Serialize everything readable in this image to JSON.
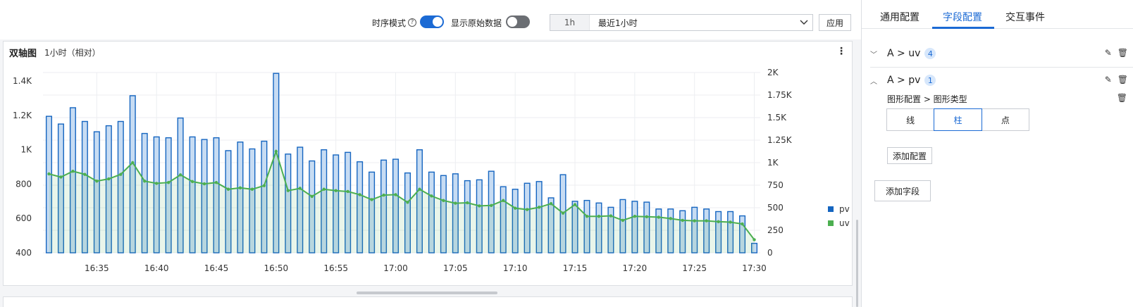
{
  "toolbar": {
    "timeseries_label": "时序模式",
    "timeseries_on": true,
    "raw_label": "显示原始数据",
    "raw_on": false,
    "time_short": "1h",
    "time_range": "最近1小时",
    "apply_label": "应用"
  },
  "panel": {
    "title": "双轴图",
    "subtitle": "1小时（相对）"
  },
  "chart_data": {
    "type": "bar",
    "x": [
      "16:31",
      "16:32",
      "16:33",
      "16:34",
      "16:35",
      "16:36",
      "16:37",
      "16:38",
      "16:39",
      "16:40",
      "16:41",
      "16:42",
      "16:43",
      "16:44",
      "16:45",
      "16:46",
      "16:47",
      "16:48",
      "16:49",
      "16:50",
      "16:51",
      "16:52",
      "16:53",
      "16:54",
      "16:55",
      "16:56",
      "16:57",
      "16:58",
      "16:59",
      "17:00",
      "17:01",
      "17:02",
      "17:03",
      "17:04",
      "17:05",
      "17:06",
      "17:07",
      "17:08",
      "17:09",
      "17:10",
      "17:11",
      "17:12",
      "17:13",
      "17:14",
      "17:15",
      "17:16",
      "17:17",
      "17:18",
      "17:19",
      "17:20",
      "17:21",
      "17:22",
      "17:23",
      "17:24",
      "17:25",
      "17:26",
      "17:27",
      "17:28",
      "17:29",
      "17:30"
    ],
    "x_ticks": [
      "16:35",
      "16:40",
      "16:45",
      "16:50",
      "16:55",
      "17:00",
      "17:05",
      "17:10",
      "17:15",
      "17:20",
      "17:25",
      "17:30"
    ],
    "series": [
      {
        "name": "pv",
        "type": "bar",
        "axis": "left",
        "color": "#1565c0",
        "values": [
          1195,
          1150,
          1245,
          1165,
          1105,
          1140,
          1165,
          1315,
          1095,
          1075,
          1070,
          1185,
          1075,
          1060,
          1070,
          995,
          1045,
          1005,
          1050,
          1445,
          975,
          1015,
          935,
          1000,
          970,
          985,
          930,
          870,
          940,
          945,
          865,
          1000,
          870,
          850,
          860,
          820,
          825,
          875,
          785,
          770,
          805,
          815,
          720,
          855,
          700,
          705,
          690,
          665,
          710,
          700,
          695,
          655,
          655,
          645,
          665,
          655,
          640,
          640,
          615,
          455
        ]
      },
      {
        "name": "uv",
        "type": "area",
        "axis": "right",
        "color": "#4caf50",
        "values": [
          875,
          840,
          905,
          870,
          795,
          820,
          870,
          1000,
          795,
          770,
          780,
          865,
          790,
          765,
          780,
          705,
          720,
          705,
          745,
          1125,
          690,
          715,
          625,
          705,
          690,
          680,
          645,
          590,
          640,
          645,
          560,
          705,
          630,
          580,
          550,
          555,
          520,
          525,
          580,
          495,
          480,
          505,
          545,
          440,
          535,
          405,
          405,
          410,
          360,
          405,
          400,
          395,
          380,
          360,
          355,
          355,
          345,
          340,
          320,
          145
        ]
      }
    ],
    "y_left": {
      "ticks": [
        400,
        600,
        800,
        1000,
        1200,
        1400
      ],
      "labels": [
        "400",
        "600",
        "800",
        "1K",
        "1.2K",
        "1.4K"
      ],
      "range": [
        400,
        1450
      ]
    },
    "y_right": {
      "ticks": [
        0,
        250,
        500,
        750,
        1000,
        1250,
        1500,
        1750,
        2000
      ],
      "labels": [
        "0",
        "250",
        "500",
        "750",
        "1K",
        "1.25K",
        "1.5K",
        "1.75K",
        "2K"
      ],
      "range": [
        0,
        2000
      ]
    },
    "grid": true,
    "legend": "right"
  },
  "sidebar": {
    "tabs": [
      "通用配置",
      "字段配置",
      "交互事件"
    ],
    "active_tab": 1,
    "fields": [
      {
        "label": "A > uv",
        "count": "4",
        "expanded": false
      },
      {
        "label": "A > pv",
        "count": "1",
        "expanded": true
      }
    ],
    "config_path": "图形配置 > 图形类型",
    "shape_options": [
      "线",
      "柱",
      "点"
    ],
    "shape_selected": 1,
    "add_config_label": "添加配置",
    "add_field_label": "添加字段"
  }
}
